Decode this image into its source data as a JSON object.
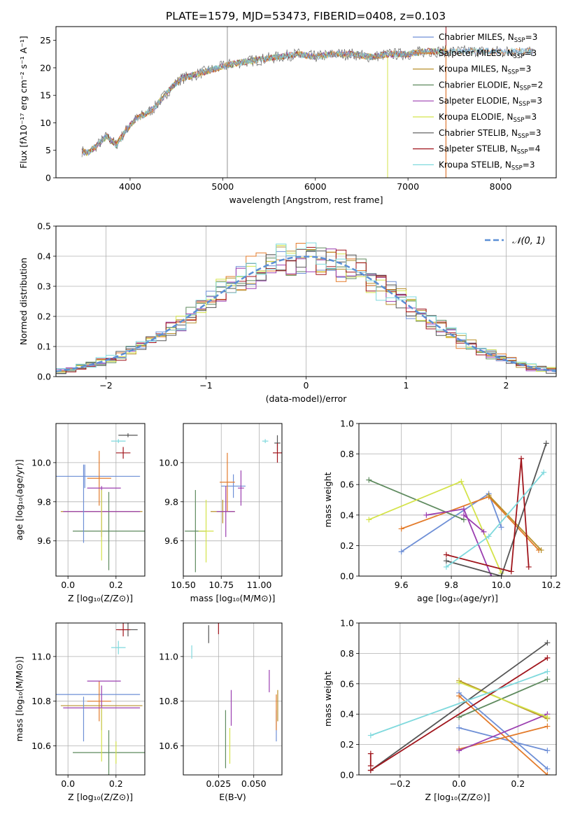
{
  "figure_title": "PLATE=1579, MJD=53473, FIBERID=0408, z=0.103",
  "series": [
    {
      "key": "chab_miles",
      "label": "Chabrier MILES, N",
      "sub": "SSP",
      "suffix": "=3",
      "color": "#6e8fd6"
    },
    {
      "key": "salp_miles",
      "label": "Salpeter MILES, N",
      "sub": "SSP",
      "suffix": "=3",
      "color": "#e37b2b"
    },
    {
      "key": "krou_miles",
      "label": "Kroupa MILES, N",
      "sub": "SSP",
      "suffix": "=3",
      "color": "#b8902b"
    },
    {
      "key": "chab_elodie",
      "label": "Chabrier ELODIE, N",
      "sub": "SSP",
      "suffix": "=2",
      "color": "#5e8a5e"
    },
    {
      "key": "salp_elodie",
      "label": "Salpeter ELODIE, N",
      "sub": "SSP",
      "suffix": "=3",
      "color": "#9b3fb0"
    },
    {
      "key": "krou_elodie",
      "label": "Kroupa ELODIE, N",
      "sub": "SSP",
      "suffix": "=3",
      "color": "#d4e34a"
    },
    {
      "key": "chab_stelib",
      "label": "Chabrier STELIB, N",
      "sub": "SSP",
      "suffix": "=3",
      "color": "#555555"
    },
    {
      "key": "salp_stelib",
      "label": "Salpeter STELIB, N",
      "sub": "SSP",
      "suffix": "=4",
      "color": "#a0151c"
    },
    {
      "key": "krou_stelib",
      "label": "Kroupa STELIB, N",
      "sub": "SSP",
      "suffix": "=3",
      "color": "#7fd9dd"
    }
  ],
  "chart_data": [
    {
      "id": "spectrum",
      "type": "line",
      "xlabel": "wavelength [Angstrom, rest frame]",
      "ylabel": "Flux [fλ10⁻¹⁷ erg cm⁻² s⁻¹ A⁻¹]",
      "xlim": [
        3200,
        8600
      ],
      "ylim": [
        0,
        27.5
      ],
      "xticks": [
        4000,
        5000,
        6000,
        7000,
        8000
      ],
      "yticks": [
        0,
        5,
        10,
        15,
        20,
        25
      ],
      "grid": false,
      "legend": "top-right",
      "x": [
        3450,
        3550,
        3650,
        3750,
        3850,
        3950,
        4050,
        4150,
        4250,
        4350,
        4450,
        4550,
        4650,
        4750,
        4850,
        4950,
        5050,
        5200,
        5400,
        5600,
        5800,
        6000,
        6200,
        6400,
        6600,
        6800,
        7000,
        7200,
        7400
      ],
      "y": [
        5,
        4.5,
        6,
        7.5,
        6,
        8.5,
        10.5,
        11.5,
        12.5,
        14.5,
        16.5,
        18,
        18.5,
        19,
        19.5,
        20,
        20.5,
        21,
        21.5,
        22,
        22.5,
        22,
        22.5,
        22.5,
        22,
        22.5,
        22.5,
        23,
        23
      ]
    },
    {
      "id": "residuals",
      "type": "line",
      "xlabel": "(data-model)/error",
      "ylabel": "Normed distribution",
      "xlim": [
        -2.5,
        2.5
      ],
      "ylim": [
        0,
        0.5
      ],
      "xticks": [
        -2,
        -1,
        0,
        1,
        2
      ],
      "yticks": [
        0,
        0.1,
        0.2,
        0.3,
        0.4,
        0.5
      ],
      "grid": true,
      "legend": "top-right",
      "reference": {
        "name": "𝒩(0, 1)",
        "type": "gaussian",
        "mean": 0,
        "sigma": 1
      }
    },
    {
      "id": "z_age",
      "type": "scatter",
      "xlabel": "Z [log₁₀(Z/Z⊙)]",
      "ylabel": "age  [log₁₀(age/yr)]",
      "xlim": [
        -0.05,
        0.32
      ],
      "ylim": [
        9.42,
        10.2
      ],
      "xticks": [
        0,
        0.2
      ],
      "yticks": [
        9.6,
        9.8,
        10.0
      ],
      "grid": true,
      "points": [
        {
          "series": "chab_miles",
          "x": 0.07,
          "xerr": 0.23,
          "y": 9.93,
          "yerr": 0.06
        },
        {
          "series": "salp_miles",
          "x": 0.13,
          "xerr": 0.05,
          "y": 9.92,
          "yerr": 0.14
        },
        {
          "series": "krou_miles",
          "x": 0.14,
          "xerr": 0.17,
          "y": 9.75,
          "yerr": 0.0
        },
        {
          "series": "chab_elodie",
          "x": 0.17,
          "xerr": 0.15,
          "y": 9.65,
          "yerr": 0.2
        },
        {
          "series": "salp_elodie",
          "x": 0.14,
          "xerr": 0.16,
          "y": 9.75,
          "yerr": 0.13
        },
        {
          "series": "krou_elodie",
          "x": 0.14,
          "xerr": 0.0,
          "y": 9.68,
          "yerr": 0.18
        },
        {
          "series": "chab_stelib",
          "x": 0.25,
          "xerr": 0.04,
          "y": 10.14,
          "yerr": 0.01
        },
        {
          "series": "salp_stelib",
          "x": 0.23,
          "xerr": 0.03,
          "y": 10.05,
          "yerr": 0.03
        },
        {
          "series": "krou_stelib",
          "x": 0.21,
          "xerr": 0.03,
          "y": 10.11,
          "yerr": 0.01
        },
        {
          "series": "salp_elodie",
          "x": 0.15,
          "xerr": 0.07,
          "y": 9.87,
          "yerr": 0.0
        },
        {
          "series": "chab_miles",
          "x": 0.065,
          "xerr": 0.0,
          "y": 9.79,
          "yerr": 0.2
        }
      ]
    },
    {
      "id": "mass_age",
      "type": "scatter",
      "xlabel": "mass [log₁₀(M/M⊙)]",
      "ylabel": "",
      "xlim": [
        10.5,
        11.15
      ],
      "ylim": [
        9.42,
        10.2
      ],
      "xticks": [
        10.5,
        10.75,
        11.0
      ],
      "yticks": [
        9.6,
        9.8,
        10.0
      ],
      "grid": true,
      "points": [
        {
          "series": "chab_miles",
          "x": 10.83,
          "xerr": 0.08,
          "y": 9.88,
          "yerr": 0.06
        },
        {
          "series": "salp_miles",
          "x": 10.79,
          "xerr": 0.05,
          "y": 9.9,
          "yerr": 0.15
        },
        {
          "series": "krou_miles",
          "x": 10.76,
          "xerr": 0.08,
          "y": 9.75,
          "yerr": 0.06
        },
        {
          "series": "chab_elodie",
          "x": 10.58,
          "xerr": 0.07,
          "y": 9.65,
          "yerr": 0.21
        },
        {
          "series": "salp_elodie",
          "x": 10.78,
          "xerr": 0.06,
          "y": 9.75,
          "yerr": 0.13
        },
        {
          "series": "krou_elodie",
          "x": 10.65,
          "xerr": 0.05,
          "y": 9.65,
          "yerr": 0.16
        },
        {
          "series": "chab_stelib",
          "x": 11.12,
          "xerr": 0.02,
          "y": 10.1,
          "yerr": 0.04
        },
        {
          "series": "salp_stelib",
          "x": 11.12,
          "xerr": 0.03,
          "y": 10.05,
          "yerr": 0.05
        },
        {
          "series": "krou_stelib",
          "x": 11.04,
          "xerr": 0.02,
          "y": 10.11,
          "yerr": 0.01
        },
        {
          "series": "salp_elodie",
          "x": 10.88,
          "xerr": 0.02,
          "y": 9.87,
          "yerr": 0.09
        }
      ]
    },
    {
      "id": "age_weight",
      "type": "line",
      "xlabel": "age  [log₁₀(age/yr)]",
      "ylabel": "mass weight",
      "xlim": [
        9.43,
        10.22
      ],
      "ylim": [
        0,
        1.0
      ],
      "xticks": [
        9.6,
        9.8,
        10.0,
        10.2
      ],
      "yticks": [
        0,
        0.2,
        0.4,
        0.6,
        0.8,
        1.0
      ],
      "grid": true,
      "lines": [
        {
          "series": "chab_miles",
          "x": [
            9.6,
            9.95,
            10.0
          ],
          "y": [
            0.16,
            0.54,
            0.32
          ]
        },
        {
          "series": "salp_miles",
          "x": [
            9.6,
            9.95,
            10.15
          ],
          "y": [
            0.31,
            0.52,
            0.17
          ]
        },
        {
          "series": "krou_miles",
          "x": [
            9.95,
            10.16
          ],
          "y": [
            0.53,
            0.17
          ]
        },
        {
          "series": "chab_elodie",
          "x": [
            9.47,
            9.85
          ],
          "y": [
            0.63,
            0.37
          ]
        },
        {
          "series": "salp_elodie",
          "x": [
            9.7,
            9.85,
            9.96
          ],
          "y": [
            0.4,
            0.44,
            0.0
          ]
        },
        {
          "series": "krou_elodie",
          "x": [
            9.47,
            9.84,
            10.0
          ],
          "y": [
            0.37,
            0.62,
            0.02
          ]
        },
        {
          "series": "chab_stelib",
          "x": [
            9.78,
            10.0,
            10.18
          ],
          "y": [
            0.1,
            0.0,
            0.87
          ]
        },
        {
          "series": "salp_stelib",
          "x": [
            9.78,
            10.04,
            10.08,
            10.11
          ],
          "y": [
            0.14,
            0.03,
            0.77,
            0.06
          ]
        },
        {
          "series": "krou_stelib",
          "x": [
            9.78,
            9.95,
            10.17
          ],
          "y": [
            0.06,
            0.26,
            0.68
          ]
        },
        {
          "series": "salp_elodie",
          "x": [
            9.85,
            9.93
          ],
          "y": [
            0.4,
            0.29
          ]
        }
      ]
    },
    {
      "id": "z_mass",
      "type": "scatter",
      "xlabel": "Z [log₁₀(Z/Z⊙)]",
      "ylabel": "mass [log₁₀(M/M⊙)]",
      "xlim": [
        -0.05,
        0.32
      ],
      "ylim": [
        10.47,
        11.15
      ],
      "xticks": [
        0,
        0.2
      ],
      "yticks": [
        10.6,
        10.8,
        11.0
      ],
      "grid": true,
      "points": [
        {
          "series": "chab_miles",
          "x": 0.07,
          "xerr": 0.23,
          "y": 10.83,
          "yerr": 0.0
        },
        {
          "series": "salp_miles",
          "x": 0.13,
          "xerr": 0.05,
          "y": 10.8,
          "yerr": 0.09
        },
        {
          "series": "krou_miles",
          "x": 0.14,
          "xerr": 0.17,
          "y": 10.78,
          "yerr": 0.0
        },
        {
          "series": "chab_elodie",
          "x": 0.17,
          "xerr": 0.15,
          "y": 10.57,
          "yerr": 0.1
        },
        {
          "series": "salp_elodie",
          "x": 0.14,
          "xerr": 0.16,
          "y": 10.77,
          "yerr": 0.1
        },
        {
          "series": "krou_elodie",
          "x": 0.14,
          "xerr": 0.0,
          "y": 10.65,
          "yerr": 0.12
        },
        {
          "series": "chab_stelib",
          "x": 0.25,
          "xerr": 0.04,
          "y": 11.12,
          "yerr": 0.03
        },
        {
          "series": "salp_stelib",
          "x": 0.23,
          "xerr": 0.03,
          "y": 11.12,
          "yerr": 0.03
        },
        {
          "series": "krou_stelib",
          "x": 0.21,
          "xerr": 0.03,
          "y": 11.04,
          "yerr": 0.03
        },
        {
          "series": "salp_elodie",
          "x": 0.15,
          "xerr": 0.07,
          "y": 10.89,
          "yerr": 0.0
        },
        {
          "series": "chab_miles",
          "x": 0.065,
          "xerr": 0.0,
          "y": 10.72,
          "yerr": 0.1
        },
        {
          "series": "krou_elodie",
          "x": 0.2,
          "xerr": 0.0,
          "y": 10.57,
          "yerr": 0.05
        }
      ]
    },
    {
      "id": "ebv_mass",
      "type": "scatter",
      "xlabel": "E(B-V)",
      "ylabel": "",
      "xlim": [
        0.0,
        0.07
      ],
      "ylim": [
        10.47,
        11.15
      ],
      "xticks": [
        0.025,
        0.05
      ],
      "yticks": [
        10.6,
        10.8,
        11.0
      ],
      "grid": true,
      "points": [
        {
          "series": "chab_miles",
          "x": 0.066,
          "xerr": 0,
          "y": 10.69,
          "yerr": 0.07
        },
        {
          "series": "salp_miles",
          "x": 0.066,
          "xerr": 0,
          "y": 10.75,
          "yerr": 0.08
        },
        {
          "series": "krou_miles",
          "x": 0.067,
          "xerr": 0,
          "y": 10.78,
          "yerr": 0.07
        },
        {
          "series": "chab_elodie",
          "x": 0.03,
          "xerr": 0,
          "y": 10.63,
          "yerr": 0.13
        },
        {
          "series": "salp_elodie",
          "x": 0.034,
          "xerr": 0,
          "y": 10.77,
          "yerr": 0.08
        },
        {
          "series": "krou_elodie",
          "x": 0.033,
          "xerr": 0,
          "y": 10.6,
          "yerr": 0.08
        },
        {
          "series": "chab_stelib",
          "x": 0.018,
          "xerr": 0,
          "y": 11.1,
          "yerr": 0.04
        },
        {
          "series": "salp_stelib",
          "x": 0.025,
          "xerr": 0,
          "y": 11.13,
          "yerr": 0.03
        },
        {
          "series": "krou_stelib",
          "x": 0.006,
          "xerr": 0,
          "y": 11.02,
          "yerr": 0.03
        },
        {
          "series": "salp_elodie",
          "x": 0.061,
          "xerr": 0,
          "y": 10.89,
          "yerr": 0.05
        }
      ]
    },
    {
      "id": "z_weight",
      "type": "line",
      "xlabel": "Z [log₁₀(Z/Z⊙)]",
      "ylabel": "mass weight",
      "xlim": [
        -0.34,
        0.33
      ],
      "ylim": [
        0,
        1.0
      ],
      "xticks": [
        -0.2,
        0.0,
        0.2
      ],
      "yticks": [
        0,
        0.2,
        0.4,
        0.6,
        0.8,
        1.0
      ],
      "grid": true,
      "lines": [
        {
          "series": "chab_miles",
          "x": [
            0.0,
            0.3
          ],
          "y": [
            0.31,
            0.16
          ]
        },
        {
          "series": "chab_miles",
          "x": [
            0.0,
            0.3
          ],
          "y": [
            0.54,
            0.04
          ]
        },
        {
          "series": "salp_miles",
          "x": [
            0.0,
            0.3
          ],
          "y": [
            0.17,
            0.32
          ]
        },
        {
          "series": "salp_miles",
          "x": [
            0.0,
            0.3
          ],
          "y": [
            0.52,
            0.0
          ]
        },
        {
          "series": "krou_miles",
          "x": [
            0.0,
            0.3
          ],
          "y": [
            0.62,
            0.37
          ]
        },
        {
          "series": "chab_elodie",
          "x": [
            0.0,
            0.3
          ],
          "y": [
            0.38,
            0.63
          ]
        },
        {
          "series": "salp_elodie",
          "x": [
            0.0,
            0.3
          ],
          "y": [
            0.16,
            0.4
          ]
        },
        {
          "series": "krou_elodie",
          "x": [
            0.0,
            0.3
          ],
          "y": [
            0.61,
            0.38
          ]
        },
        {
          "series": "chab_stelib",
          "x": [
            -0.3,
            0.3
          ],
          "y": [
            0.03,
            0.87
          ]
        },
        {
          "series": "salp_stelib",
          "x": [
            -0.3,
            0.3
          ],
          "y": [
            0.03,
            0.77
          ]
        },
        {
          "series": "krou_stelib",
          "x": [
            -0.3,
            0.3
          ],
          "y": [
            0.26,
            0.68
          ]
        },
        {
          "series": "salp_stelib",
          "x": [
            -0.3,
            -0.3
          ],
          "y": [
            0.14,
            0.06
          ]
        }
      ]
    }
  ]
}
